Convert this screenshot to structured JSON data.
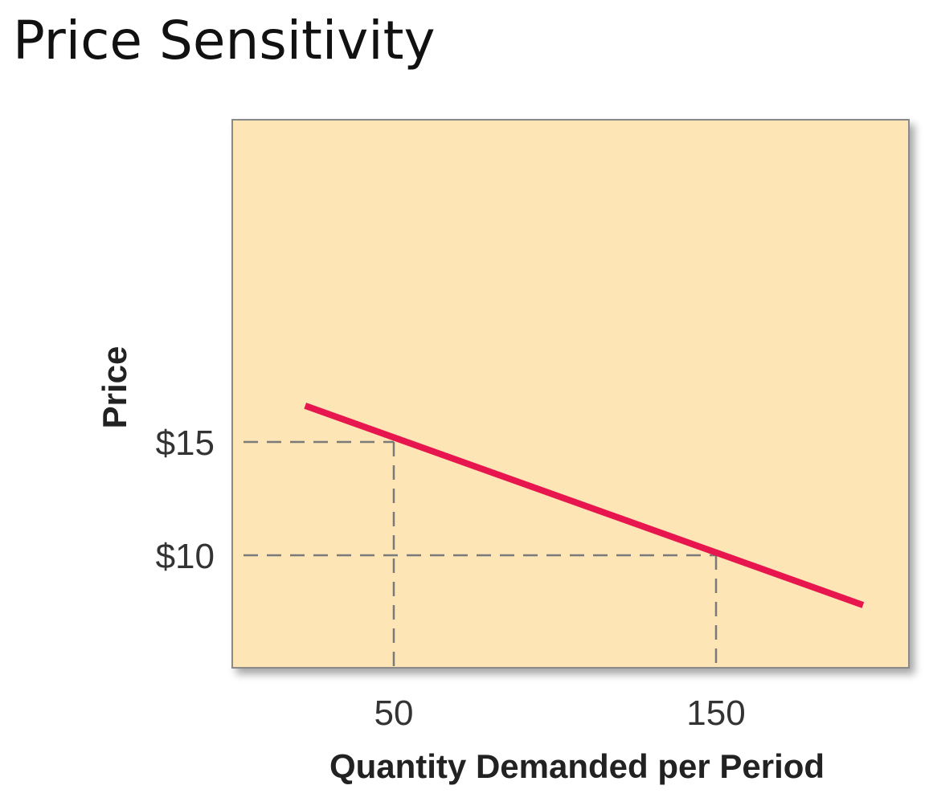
{
  "slide": {
    "title": "Price Sensitivity"
  },
  "chart_data": {
    "type": "line",
    "xlabel": "Quantity Demanded per Period",
    "ylabel": "Price",
    "x_ticks": [
      {
        "value": 50,
        "label": "50"
      },
      {
        "value": 150,
        "label": "150"
      }
    ],
    "y_ticks": [
      {
        "value": 15,
        "label": "$15"
      },
      {
        "value": 10,
        "label": "$10"
      }
    ],
    "series": [
      {
        "x": [
          22.5,
          195.6
        ],
        "y": [
          16.6,
          7.8
        ],
        "color": "#e8164e"
      }
    ],
    "reference_points": [
      {
        "x": 50,
        "y": 15
      },
      {
        "x": 150,
        "y": 10
      }
    ],
    "xlim": [
      0,
      210
    ],
    "ylim": [
      0,
      24
    ],
    "grid": false,
    "plot_background": "#fde5b5",
    "frame_color": "#8a8a8a",
    "guide_color": "#7a7a7a"
  }
}
